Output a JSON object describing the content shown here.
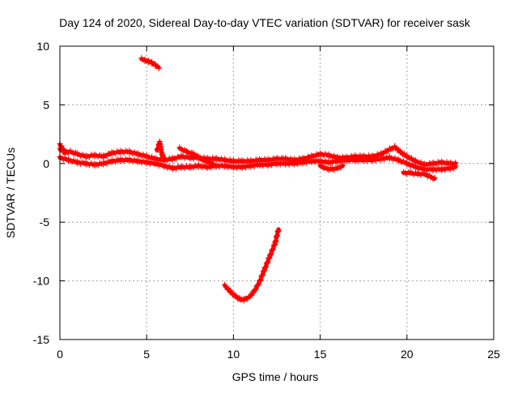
{
  "chart_data": {
    "type": "scatter",
    "title": "Day 124 of 2020, Sidereal Day-to-day VTEC variation (SDTVAR) for receiver sask",
    "xlabel": "GPS time / hours",
    "ylabel": "SDTVAR / TECUs",
    "xlim": [
      0,
      25
    ],
    "ylim": [
      -15,
      10
    ],
    "xticks": [
      0,
      5,
      10,
      15,
      20,
      25
    ],
    "yticks": [
      -15,
      -10,
      -5,
      0,
      5,
      10
    ],
    "grid": true,
    "series": [
      {
        "name": "SDTVAR",
        "color": "#ff0000",
        "marker": "plus",
        "segments": [
          {
            "label": "main-band-upper",
            "x": [
              0.0,
              0.3,
              0.6,
              1.0,
              1.5,
              2.0,
              2.5,
              3.0,
              3.5,
              4.0,
              4.5,
              5.0,
              5.5,
              6.0,
              6.5,
              7.0,
              7.5,
              8.0,
              8.5,
              9.0,
              9.5,
              10.0,
              10.5,
              11.0,
              11.5,
              12.0,
              12.5,
              13.0,
              13.5,
              14.0,
              14.5,
              15.0,
              15.5,
              16.0,
              16.5,
              17.0,
              17.5,
              18.0,
              18.5,
              19.0,
              19.3,
              19.6,
              20.0,
              20.5,
              21.0,
              21.5,
              22.0,
              22.5,
              22.8
            ],
            "y": [
              1.2,
              1.0,
              1.0,
              0.8,
              0.6,
              0.7,
              0.6,
              0.9,
              1.0,
              1.0,
              0.8,
              0.6,
              0.4,
              0.3,
              0.4,
              0.6,
              0.5,
              0.5,
              0.4,
              0.4,
              0.3,
              0.2,
              0.2,
              0.2,
              0.3,
              0.3,
              0.4,
              0.4,
              0.3,
              0.4,
              0.6,
              0.8,
              0.7,
              0.5,
              0.5,
              0.6,
              0.6,
              0.6,
              0.8,
              1.2,
              1.4,
              1.0,
              0.6,
              0.2,
              -0.1,
              0.0,
              0.1,
              0.0,
              0.0
            ]
          },
          {
            "label": "main-band-lower",
            "x": [
              0.0,
              0.5,
              1.0,
              1.5,
              2.0,
              2.5,
              3.0,
              3.5,
              4.0,
              4.5,
              5.0,
              5.5,
              6.0,
              6.5,
              7.0,
              7.5,
              8.0,
              8.5,
              9.0,
              9.5,
              10.0,
              10.5,
              11.0,
              11.5,
              12.0,
              12.5,
              13.0,
              13.5,
              14.0,
              14.5,
              15.0,
              15.5,
              16.0,
              16.5,
              17.0,
              17.5,
              18.0,
              18.5,
              19.0,
              19.5,
              20.0,
              20.5,
              21.0,
              21.5,
              22.0,
              22.5,
              22.8
            ],
            "y": [
              0.5,
              0.3,
              0.1,
              0.0,
              -0.1,
              0.0,
              0.2,
              0.3,
              0.3,
              0.2,
              0.1,
              0.0,
              -0.2,
              -0.4,
              -0.3,
              -0.3,
              -0.2,
              -0.3,
              -0.2,
              -0.2,
              -0.3,
              -0.3,
              -0.2,
              -0.1,
              -0.1,
              0.0,
              0.0,
              0.0,
              0.1,
              0.2,
              0.2,
              0.1,
              0.2,
              0.3,
              0.3,
              0.3,
              0.3,
              0.4,
              0.5,
              0.3,
              0.0,
              -0.3,
              -0.5,
              -0.5,
              -0.5,
              -0.4,
              -0.3
            ]
          },
          {
            "label": "dip-branch",
            "x": [
              15.0,
              15.3,
              15.6,
              16.0,
              16.3
            ],
            "y": [
              -0.2,
              -0.4,
              -0.5,
              -0.4,
              -0.2
            ]
          },
          {
            "label": "branch-7h",
            "x": [
              6.9,
              7.3,
              7.7,
              8.0,
              8.4,
              8.8
            ],
            "y": [
              1.3,
              1.0,
              0.8,
              0.5,
              0.2,
              0.0
            ]
          },
          {
            "label": "lower-segment-20h",
            "x": [
              19.8,
              20.2,
              20.6,
              21.0,
              21.3,
              21.6
            ],
            "y": [
              -0.8,
              -0.8,
              -0.9,
              -0.9,
              -1.1,
              -1.3
            ]
          },
          {
            "label": "spike-start",
            "x": [
              0.0,
              0.1,
              0.2,
              0.3
            ],
            "y": [
              1.6,
              1.4,
              1.1,
              0.9
            ]
          },
          {
            "label": "spike-5.8h",
            "x": [
              5.6,
              5.75,
              5.9,
              6.0
            ],
            "y": [
              1.1,
              1.8,
              0.7,
              0.5
            ]
          },
          {
            "label": "high-segment",
            "x": [
              4.7,
              4.9,
              5.1,
              5.3,
              5.5,
              5.7
            ],
            "y": [
              8.9,
              8.8,
              8.7,
              8.6,
              8.4,
              8.2
            ]
          },
          {
            "label": "low-curve",
            "x": [
              9.5,
              9.8,
              10.1,
              10.4,
              10.6,
              10.9,
              11.2,
              11.5,
              11.8,
              12.1,
              12.4,
              12.6
            ],
            "y": [
              -10.4,
              -10.9,
              -11.3,
              -11.6,
              -11.6,
              -11.4,
              -10.9,
              -10.1,
              -9.0,
              -7.9,
              -6.8,
              -5.6
            ]
          }
        ]
      }
    ]
  }
}
